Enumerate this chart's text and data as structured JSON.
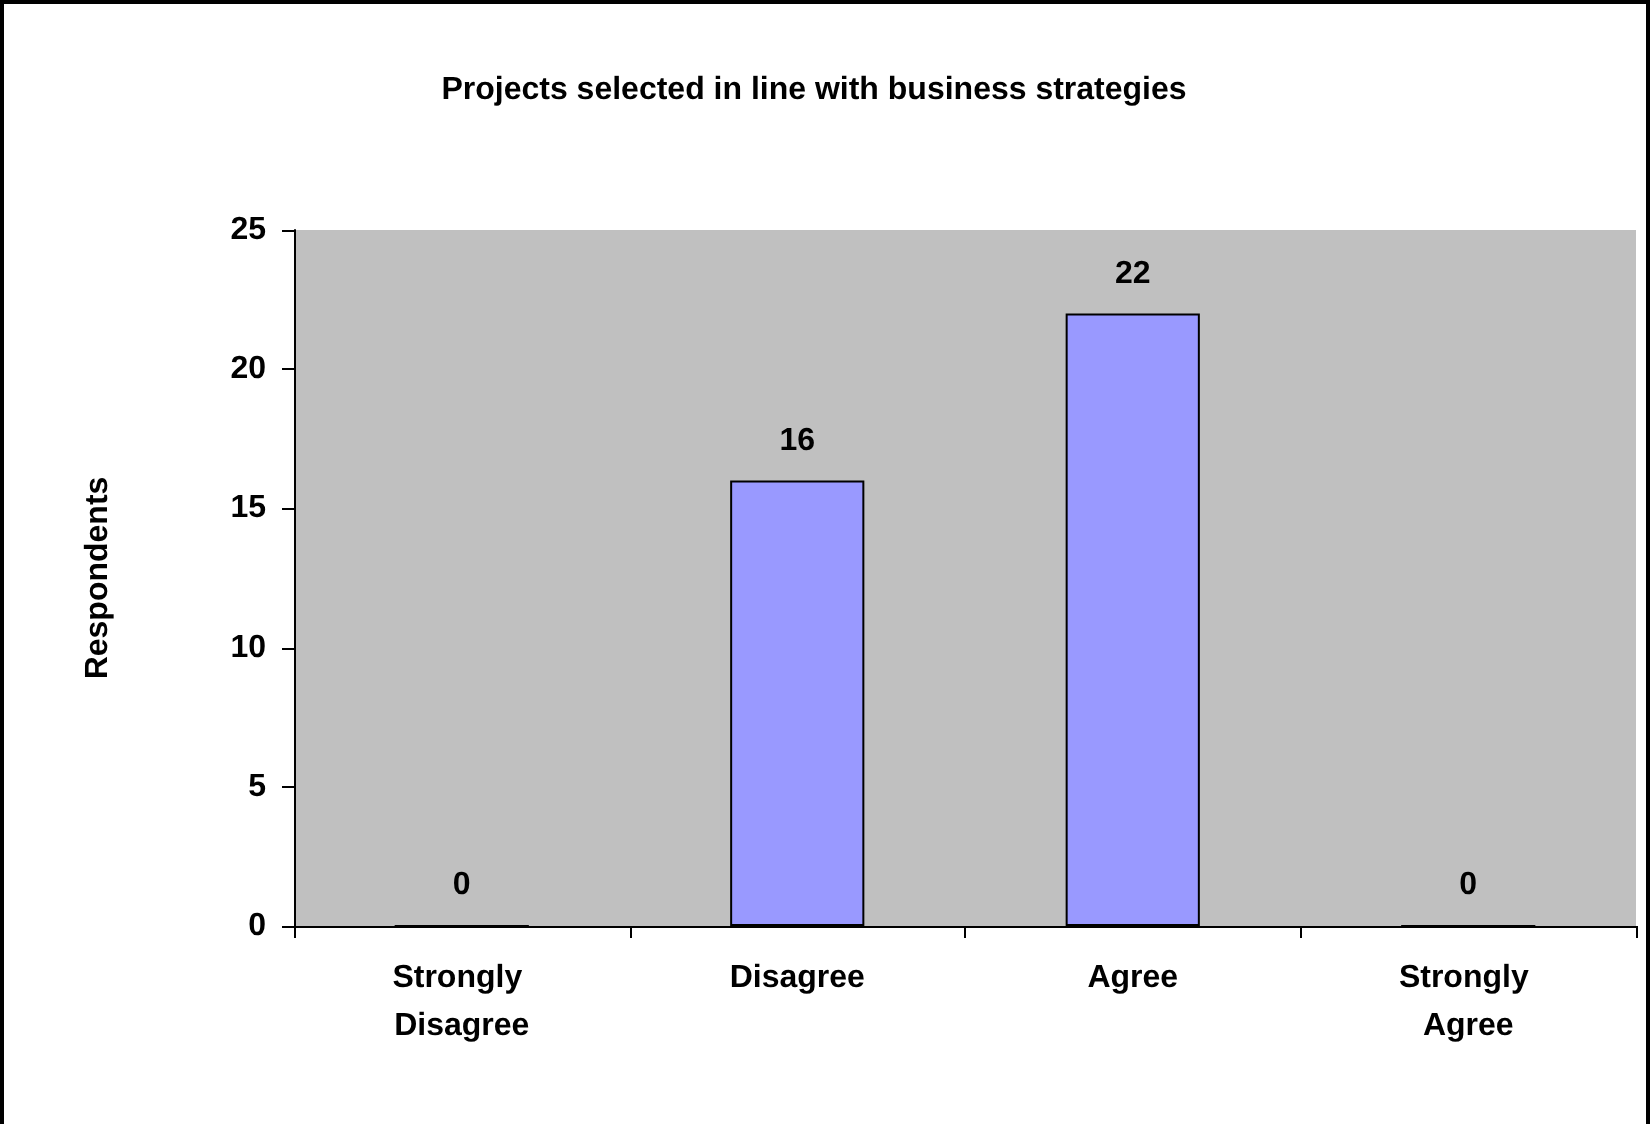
{
  "chart_data": {
    "type": "bar",
    "title": "Projects selected in line with business strategies",
    "ylabel": "Respondents",
    "categories": [
      "Strongly Disagree",
      "Disagree",
      "Agree",
      "Strongly Agree"
    ],
    "values": [
      0,
      16,
      22,
      0
    ],
    "color": "#9999ff",
    "ylim": [
      0,
      25
    ],
    "yticks": [
      0,
      5,
      10,
      15,
      20,
      25
    ],
    "grid": false,
    "data_labels": true
  }
}
